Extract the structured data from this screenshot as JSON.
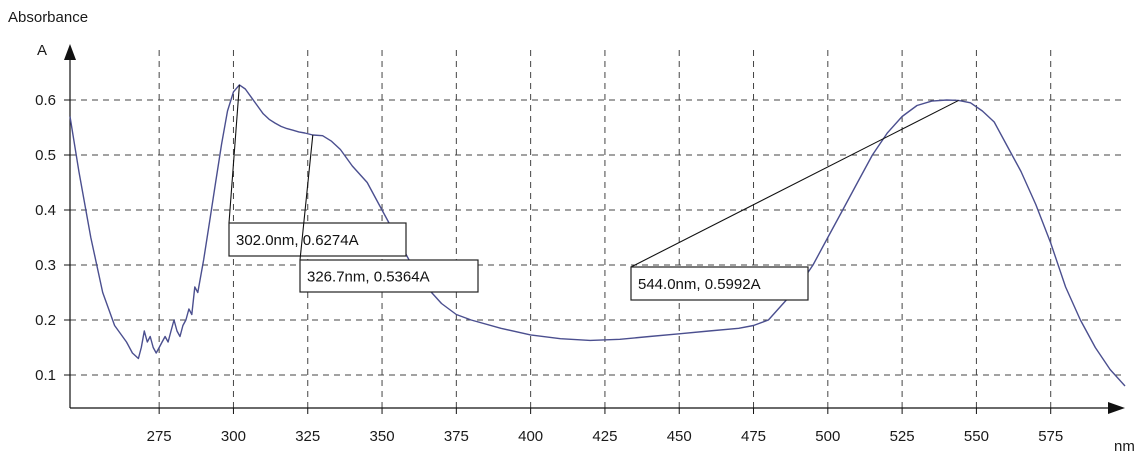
{
  "chart_data": {
    "type": "line",
    "ylabel": "Absorbance",
    "yunit": "A",
    "xunit": "nm",
    "xlim": [
      245,
      600
    ],
    "ylim": [
      0.04,
      0.7
    ],
    "grid": true,
    "grid_style": "dashed",
    "line_color": "#4b4f8f",
    "xticks": [
      275,
      300,
      325,
      350,
      375,
      400,
      425,
      450,
      475,
      500,
      525,
      550,
      575
    ],
    "yticks": [
      0.1,
      0.2,
      0.3,
      0.4,
      0.5,
      0.6
    ],
    "xtick_labels": [
      "275",
      "300",
      "325",
      "350",
      "375",
      "400",
      "425",
      "450",
      "475",
      "500",
      "525",
      "550",
      "575"
    ],
    "ytick_labels": [
      "0.1",
      "0.2",
      "0.3",
      "0.4",
      "0.5",
      "0.6"
    ],
    "series": [
      {
        "x": [
          245,
          248,
          252,
          256,
          260,
          264,
          266,
          268,
          269,
          270,
          271,
          272,
          273,
          274,
          275,
          276,
          277,
          278,
          279,
          280,
          281,
          282,
          283,
          284,
          285,
          286,
          287,
          288,
          290,
          292,
          294,
          296,
          298,
          300,
          302,
          304,
          306,
          308,
          310,
          312,
          314,
          316,
          318,
          320,
          322,
          324,
          326.7,
          330,
          333,
          336,
          340,
          345,
          350,
          355,
          360,
          365,
          370,
          375,
          380,
          390,
          400,
          410,
          420,
          430,
          440,
          450,
          460,
          470,
          475,
          480,
          485,
          490,
          495,
          500,
          505,
          510,
          515,
          520,
          525,
          530,
          535,
          540,
          544,
          548,
          552,
          556,
          560,
          565,
          570,
          575,
          580,
          585,
          590,
          595,
          600
        ],
        "y": [
          0.57,
          0.47,
          0.35,
          0.25,
          0.19,
          0.16,
          0.14,
          0.13,
          0.15,
          0.18,
          0.16,
          0.17,
          0.15,
          0.14,
          0.15,
          0.16,
          0.17,
          0.16,
          0.18,
          0.2,
          0.18,
          0.17,
          0.19,
          0.2,
          0.22,
          0.21,
          0.26,
          0.25,
          0.31,
          0.38,
          0.45,
          0.52,
          0.58,
          0.615,
          0.6274,
          0.62,
          0.605,
          0.59,
          0.575,
          0.565,
          0.558,
          0.552,
          0.548,
          0.545,
          0.542,
          0.54,
          0.5364,
          0.535,
          0.525,
          0.51,
          0.48,
          0.45,
          0.4,
          0.35,
          0.3,
          0.26,
          0.23,
          0.21,
          0.2,
          0.185,
          0.173,
          0.166,
          0.163,
          0.165,
          0.17,
          0.175,
          0.18,
          0.185,
          0.19,
          0.2,
          0.23,
          0.26,
          0.3,
          0.35,
          0.4,
          0.45,
          0.5,
          0.54,
          0.57,
          0.59,
          0.598,
          0.6,
          0.5992,
          0.595,
          0.58,
          0.56,
          0.52,
          0.47,
          0.41,
          0.34,
          0.26,
          0.2,
          0.15,
          0.11,
          0.08
        ]
      }
    ],
    "annotations": [
      {
        "label": "302.0nm, 0.6274A",
        "x": 302.0,
        "y": 0.6274
      },
      {
        "label": "326.7nm, 0.5364A",
        "x": 326.7,
        "y": 0.5364
      },
      {
        "label": "544.0nm, 0.5992A",
        "x": 544.0,
        "y": 0.5992
      }
    ]
  }
}
